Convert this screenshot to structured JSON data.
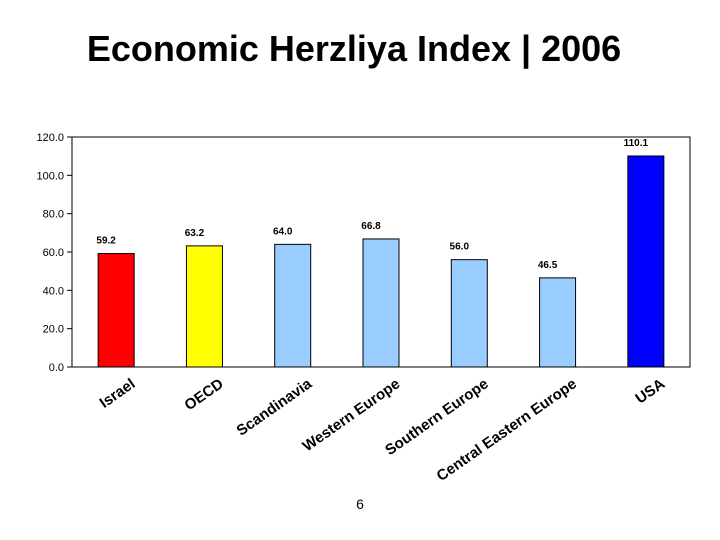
{
  "slide": {
    "title": "Economic Herzliya Index | 2006",
    "page_number": "6"
  },
  "chart_data": {
    "type": "bar",
    "title": "",
    "xlabel": "",
    "ylabel": "",
    "ylim": [
      0,
      120
    ],
    "yticks": [
      0,
      20,
      40,
      60,
      80,
      100,
      120
    ],
    "ytick_labels": [
      "0.0",
      "20.0",
      "40.0",
      "60.0",
      "80.0",
      "100.0",
      "120.0"
    ],
    "grid": false,
    "legend": "none",
    "categories": [
      "Israel",
      "OECD",
      "Scandinavia",
      "Western Europe",
      "Southern Europe",
      "Central Eastern Europe",
      "USA"
    ],
    "values": [
      59.2,
      63.2,
      64.0,
      66.8,
      56.0,
      46.5,
      110.1
    ],
    "data_labels": [
      "59.2",
      "63.2",
      "64.0",
      "66.8",
      "56.0",
      "46.5",
      "110.1"
    ],
    "colors": [
      "#ff0000",
      "#ffff00",
      "#99ccff",
      "#99ccff",
      "#99ccff",
      "#99ccff",
      "#0000ff"
    ]
  }
}
